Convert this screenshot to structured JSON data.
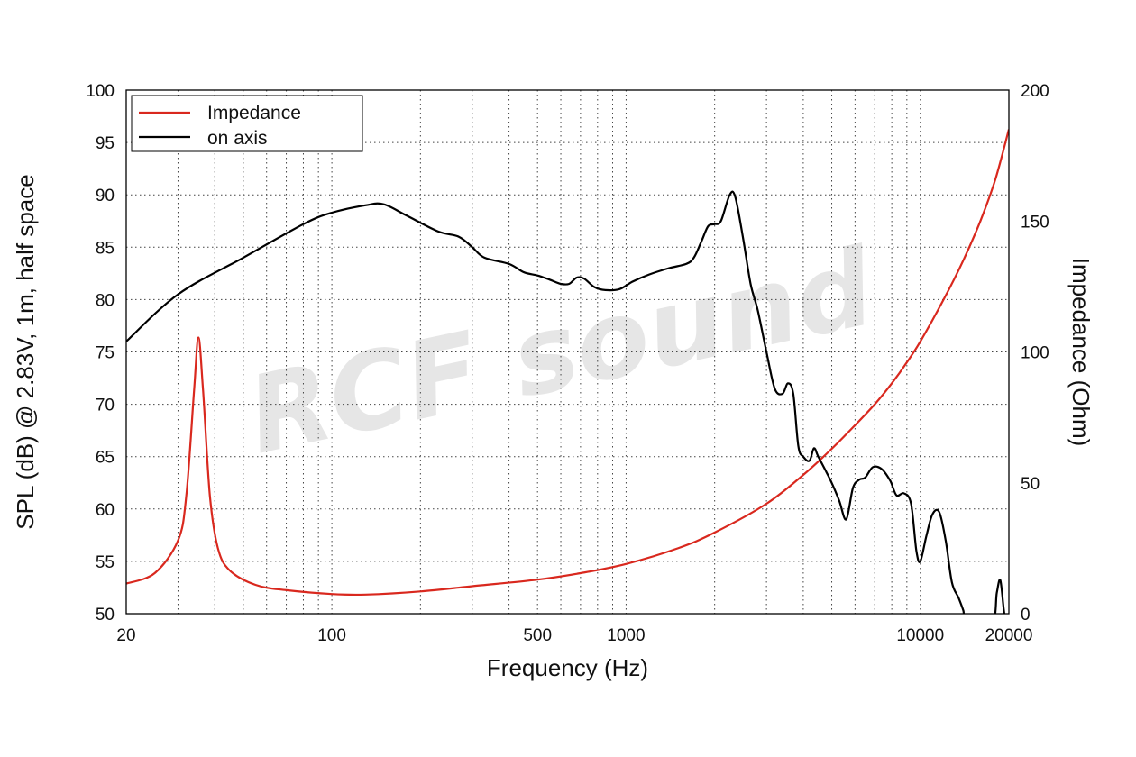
{
  "chart_data": {
    "type": "line",
    "xlabel": "Frequency (Hz)",
    "ylabel": "SPL (dB) @ 2.83V, 1m, half space",
    "y2label": "Impedance (Ohm)",
    "xscale": "log",
    "xlim": [
      20,
      20000
    ],
    "ylim": [
      50,
      100
    ],
    "y2lim": [
      0,
      200
    ],
    "xticks": [
      20,
      100,
      500,
      1000,
      10000,
      20000
    ],
    "xtick_labels": [
      "20",
      "100",
      "500",
      "1000",
      "10000",
      "20000"
    ],
    "yticks": [
      50,
      55,
      60,
      65,
      70,
      75,
      80,
      85,
      90,
      95,
      100
    ],
    "y2ticks": [
      0,
      50,
      100,
      150,
      200
    ],
    "grid": true,
    "legend_position": "top-left",
    "watermark": "RCF sound",
    "series": [
      {
        "name": "Impedance",
        "axis": "right",
        "color": "#d9281e",
        "points": [
          [
            20,
            11.5
          ],
          [
            25,
            15.5
          ],
          [
            30,
            28.0
          ],
          [
            32,
            45.0
          ],
          [
            34,
            85.0
          ],
          [
            35.2,
            105.5
          ],
          [
            36.5,
            85.0
          ],
          [
            38.5,
            45.0
          ],
          [
            41,
            25.0
          ],
          [
            45,
            16.5
          ],
          [
            55,
            11.0
          ],
          [
            70,
            9.0
          ],
          [
            100,
            7.5
          ],
          [
            130,
            7.3
          ],
          [
            200,
            8.5
          ],
          [
            300,
            10.5
          ],
          [
            500,
            13.0
          ],
          [
            700,
            15.5
          ],
          [
            1000,
            19.0
          ],
          [
            1500,
            25.0
          ],
          [
            2000,
            31.0
          ],
          [
            3000,
            42.0
          ],
          [
            4000,
            53.0
          ],
          [
            5000,
            63.0
          ],
          [
            6000,
            72.0
          ],
          [
            7000,
            80.0
          ],
          [
            8000,
            88.0
          ],
          [
            9000,
            96.0
          ],
          [
            10000,
            104.0
          ],
          [
            12000,
            120.0
          ],
          [
            14000,
            135.0
          ],
          [
            16000,
            150.0
          ],
          [
            18000,
            166.0
          ],
          [
            20000,
            185.0
          ]
        ]
      },
      {
        "name": "on axis",
        "axis": "left",
        "color": "#000000",
        "points": [
          [
            20,
            76.0
          ],
          [
            30,
            80.5
          ],
          [
            50,
            84.0
          ],
          [
            80,
            87.2
          ],
          [
            100,
            88.3
          ],
          [
            130,
            89.0
          ],
          [
            150,
            89.1
          ],
          [
            180,
            88.0
          ],
          [
            230,
            86.5
          ],
          [
            270,
            86.0
          ],
          [
            300,
            85.0
          ],
          [
            330,
            84.0
          ],
          [
            400,
            83.4
          ],
          [
            450,
            82.6
          ],
          [
            500,
            82.3
          ],
          [
            550,
            81.9
          ],
          [
            600,
            81.5
          ],
          [
            640,
            81.5
          ],
          [
            680,
            82.1
          ],
          [
            720,
            82.0
          ],
          [
            780,
            81.2
          ],
          [
            850,
            80.9
          ],
          [
            950,
            81.0
          ],
          [
            1050,
            81.7
          ],
          [
            1200,
            82.4
          ],
          [
            1400,
            83.0
          ],
          [
            1600,
            83.4
          ],
          [
            1700,
            84.0
          ],
          [
            1800,
            85.5
          ],
          [
            1900,
            87.0
          ],
          [
            2000,
            87.2
          ],
          [
            2100,
            87.5
          ],
          [
            2250,
            90.0
          ],
          [
            2350,
            89.8
          ],
          [
            2500,
            85.8
          ],
          [
            2650,
            81.5
          ],
          [
            2800,
            79.0
          ],
          [
            3000,
            75.0
          ],
          [
            3200,
            71.5
          ],
          [
            3400,
            71.0
          ],
          [
            3550,
            72.0
          ],
          [
            3700,
            71.0
          ],
          [
            3850,
            66.0
          ],
          [
            4000,
            65.0
          ],
          [
            4200,
            64.6
          ],
          [
            4350,
            65.8
          ],
          [
            4500,
            65.0
          ],
          [
            4800,
            63.5
          ],
          [
            5000,
            62.5
          ],
          [
            5300,
            60.8
          ],
          [
            5600,
            59.0
          ],
          [
            5900,
            62.0
          ],
          [
            6200,
            62.8
          ],
          [
            6500,
            63.0
          ],
          [
            6900,
            64.0
          ],
          [
            7400,
            63.8
          ],
          [
            7900,
            62.7
          ],
          [
            8300,
            61.3
          ],
          [
            8800,
            61.5
          ],
          [
            9300,
            60.5
          ],
          [
            9700,
            56.0
          ],
          [
            10000,
            55.0
          ],
          [
            10500,
            57.5
          ],
          [
            11000,
            59.5
          ],
          [
            11600,
            59.7
          ],
          [
            12200,
            57.0
          ],
          [
            12800,
            53.0
          ],
          [
            13500,
            51.5
          ],
          [
            14000,
            50.3
          ],
          [
            14400,
            49.0
          ],
          [
            17500,
            49.0
          ],
          [
            18200,
            52.0
          ],
          [
            18700,
            53.2
          ],
          [
            19200,
            50.5
          ],
          [
            19500,
            49.0
          ]
        ]
      }
    ]
  }
}
